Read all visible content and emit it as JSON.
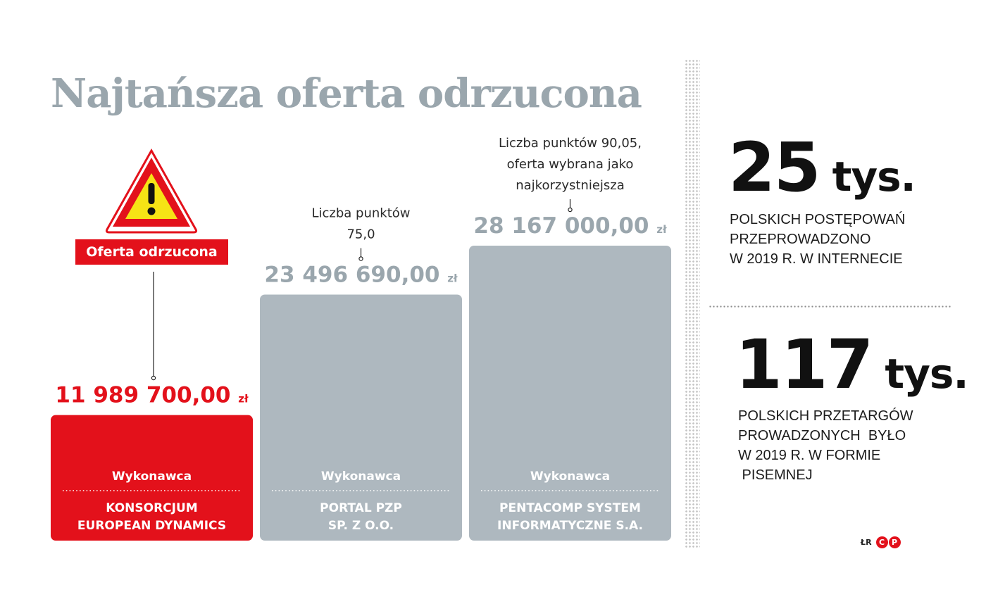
{
  "title": "Najtańsza oferta odrzucona",
  "colors": {
    "red": "#e3111b",
    "gray_bar": "#aeb8bf",
    "gray_text": "#9aa6ad"
  },
  "warning": {
    "icon": "warning-triangle-icon",
    "badge": "Oferta odrzucona"
  },
  "chart_data": {
    "type": "bar",
    "currency": "zł",
    "bars": [
      {
        "value": 11989700.0,
        "value_label": "11 989 700,00",
        "top_label": "Wykonawca",
        "name_lines": [
          "KONSORCJUM",
          "EUROPEAN DYNAMICS"
        ],
        "highlight": "red",
        "note_lines": []
      },
      {
        "value": 23496690.0,
        "value_label": "23 496 690,00",
        "top_label": "Wykonawca",
        "name_lines": [
          "PORTAL PZP",
          "SP. Z O.O."
        ],
        "highlight": "gray",
        "note_lines": [
          "Liczba punktów",
          "75,0"
        ]
      },
      {
        "value": 28167000.0,
        "value_label": "28 167 000,00",
        "top_label": "Wykonawca",
        "name_lines": [
          "PENTACOMP SYSTEM",
          "INFORMATYCZNE S.A."
        ],
        "highlight": "gray",
        "note_lines": [
          "Liczba punktów 90,05,",
          "oferta wybrana jako",
          "najkorzystniejsza"
        ]
      }
    ]
  },
  "stats": [
    {
      "number": "25",
      "unit": "tys.",
      "description": "POLSKICH POSTĘPOWAŃ\nPRZEPROWADZONO\nW 2019 R. W INTERNECIE"
    },
    {
      "number": "117",
      "unit": "tys.",
      "description": "POLSKICH PRZETARGÓW\nPROWADZONYCH  BYŁO\nW 2019 R. W FORMIE\n PISEMNEJ"
    }
  ],
  "logo": {
    "initials": "ŁR",
    "letters": [
      "C",
      "P"
    ]
  }
}
